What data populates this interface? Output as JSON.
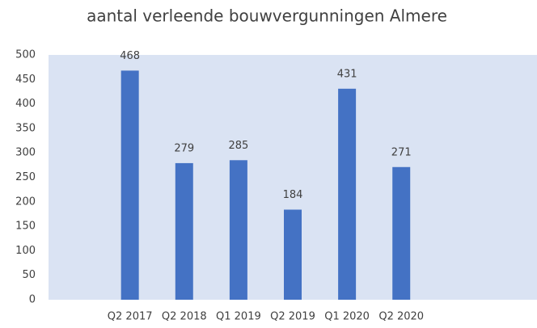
{
  "chart_data": {
    "type": "bar",
    "title": "aantal verleende bouwvergunningen Almere",
    "categories": [
      null,
      "Q2 2017",
      "Q2 2018",
      "Q1 2019",
      "Q2 2019",
      "Q1 2020",
      "Q2 2020",
      null,
      null
    ],
    "values": [
      null,
      468,
      279,
      285,
      184,
      431,
      271,
      null,
      null
    ],
    "color": "#4472c4",
    "plot_background": "#dae3f3",
    "ylim": [
      0,
      500
    ],
    "yticks": [
      0,
      50,
      100,
      150,
      200,
      250,
      300,
      350,
      400,
      450,
      500
    ]
  }
}
